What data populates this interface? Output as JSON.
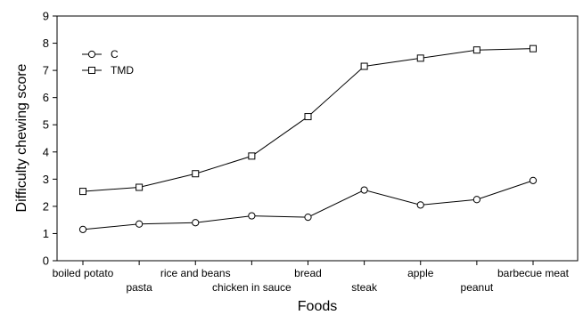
{
  "chart_data": {
    "type": "line",
    "title": "",
    "xlabel": "Foods",
    "ylabel": "Difficulty chewing score",
    "ylim": [
      0,
      9
    ],
    "yticks": [
      0,
      1,
      2,
      3,
      4,
      5,
      6,
      7,
      8,
      9
    ],
    "grid": false,
    "legend_position": "top-left",
    "categories": [
      "boiled potato",
      "pasta",
      "rice and beans",
      "chicken in sauce",
      "bread",
      "steak",
      "apple",
      "peanut",
      "barbecue meat"
    ],
    "series": [
      {
        "name": "C",
        "marker": "circle",
        "values": [
          1.15,
          1.35,
          1.4,
          1.65,
          1.6,
          2.6,
          2.05,
          2.25,
          2.95
        ]
      },
      {
        "name": "TMD",
        "marker": "square",
        "values": [
          2.55,
          2.7,
          3.2,
          3.85,
          5.3,
          7.15,
          7.45,
          7.75,
          7.8
        ]
      }
    ]
  }
}
